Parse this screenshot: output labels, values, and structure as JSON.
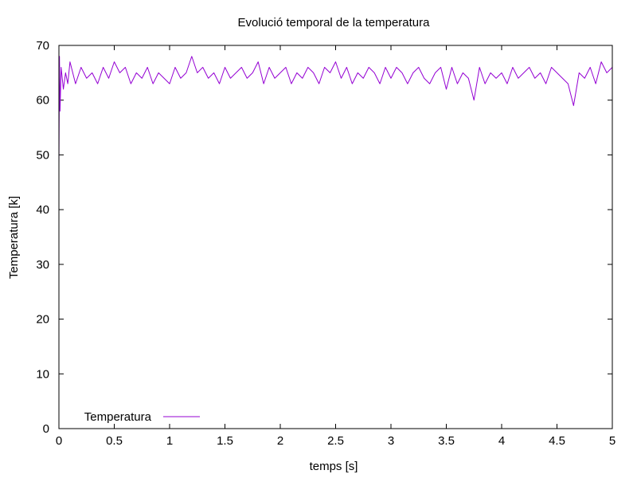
{
  "colors": {
    "series": "#9400d3",
    "axes": "#000000",
    "background": "#ffffff"
  },
  "chart_data": {
    "type": "line",
    "title": "Evolució temporal de la temperatura",
    "xlabel": "temps [s]",
    "ylabel": "Temperatura [k]",
    "xlim": [
      0,
      5
    ],
    "ylim": [
      0,
      70
    ],
    "grid": false,
    "legend_position": "bottom-left",
    "x_ticks": [
      0,
      0.5,
      1,
      1.5,
      2,
      2.5,
      3,
      3.5,
      4,
      4.5,
      5
    ],
    "x_tick_labels": [
      "0",
      "0.5",
      "1",
      "1.5",
      "2",
      "2.5",
      "3",
      "3.5",
      "4",
      "4.5",
      "5"
    ],
    "y_ticks": [
      0,
      10,
      20,
      30,
      40,
      50,
      60,
      70
    ],
    "y_tick_labels": [
      "0",
      "10",
      "20",
      "30",
      "40",
      "50",
      "60",
      "70"
    ],
    "series": [
      {
        "name": "Temperatura",
        "color": "#9400d3",
        "x": [
          0,
          0.005,
          0.01,
          0.02,
          0.04,
          0.06,
          0.08,
          0.1,
          0.15,
          0.2,
          0.25,
          0.3,
          0.35,
          0.4,
          0.45,
          0.5,
          0.55,
          0.6,
          0.65,
          0.7,
          0.75,
          0.8,
          0.85,
          0.9,
          0.95,
          1,
          1.05,
          1.1,
          1.15,
          1.2,
          1.25,
          1.3,
          1.35,
          1.4,
          1.45,
          1.5,
          1.55,
          1.6,
          1.65,
          1.7,
          1.75,
          1.8,
          1.85,
          1.9,
          1.95,
          2,
          2.05,
          2.1,
          2.15,
          2.2,
          2.25,
          2.3,
          2.35,
          2.4,
          2.45,
          2.5,
          2.55,
          2.6,
          2.65,
          2.7,
          2.75,
          2.8,
          2.85,
          2.9,
          2.95,
          3,
          3.05,
          3.1,
          3.15,
          3.2,
          3.25,
          3.3,
          3.35,
          3.4,
          3.45,
          3.5,
          3.55,
          3.6,
          3.65,
          3.7,
          3.75,
          3.8,
          3.85,
          3.9,
          3.95,
          4,
          4.05,
          4.1,
          4.15,
          4.2,
          4.25,
          4.3,
          4.35,
          4.4,
          4.45,
          4.5,
          4.55,
          4.6,
          4.65,
          4.7,
          4.75,
          4.8,
          4.85,
          4.9,
          4.95,
          5
        ],
        "y": [
          48,
          68,
          58,
          66,
          62,
          65,
          63,
          67,
          63,
          66,
          64,
          65,
          63,
          66,
          64,
          67,
          65,
          66,
          63,
          65,
          64,
          66,
          63,
          65,
          64,
          63,
          66,
          64,
          65,
          68,
          65,
          66,
          64,
          65,
          63,
          66,
          64,
          65,
          66,
          64,
          65,
          67,
          63,
          66,
          64,
          65,
          66,
          63,
          65,
          64,
          66,
          65,
          63,
          66,
          65,
          67,
          64,
          66,
          63,
          65,
          64,
          66,
          65,
          63,
          66,
          64,
          66,
          65,
          63,
          65,
          66,
          64,
          63,
          65,
          66,
          62,
          66,
          63,
          65,
          64,
          60,
          66,
          63,
          65,
          64,
          65,
          63,
          66,
          64,
          65,
          66,
          64,
          65,
          63,
          66,
          65,
          64,
          63,
          59,
          65,
          64,
          66,
          63,
          67,
          65,
          66
        ]
      }
    ]
  }
}
